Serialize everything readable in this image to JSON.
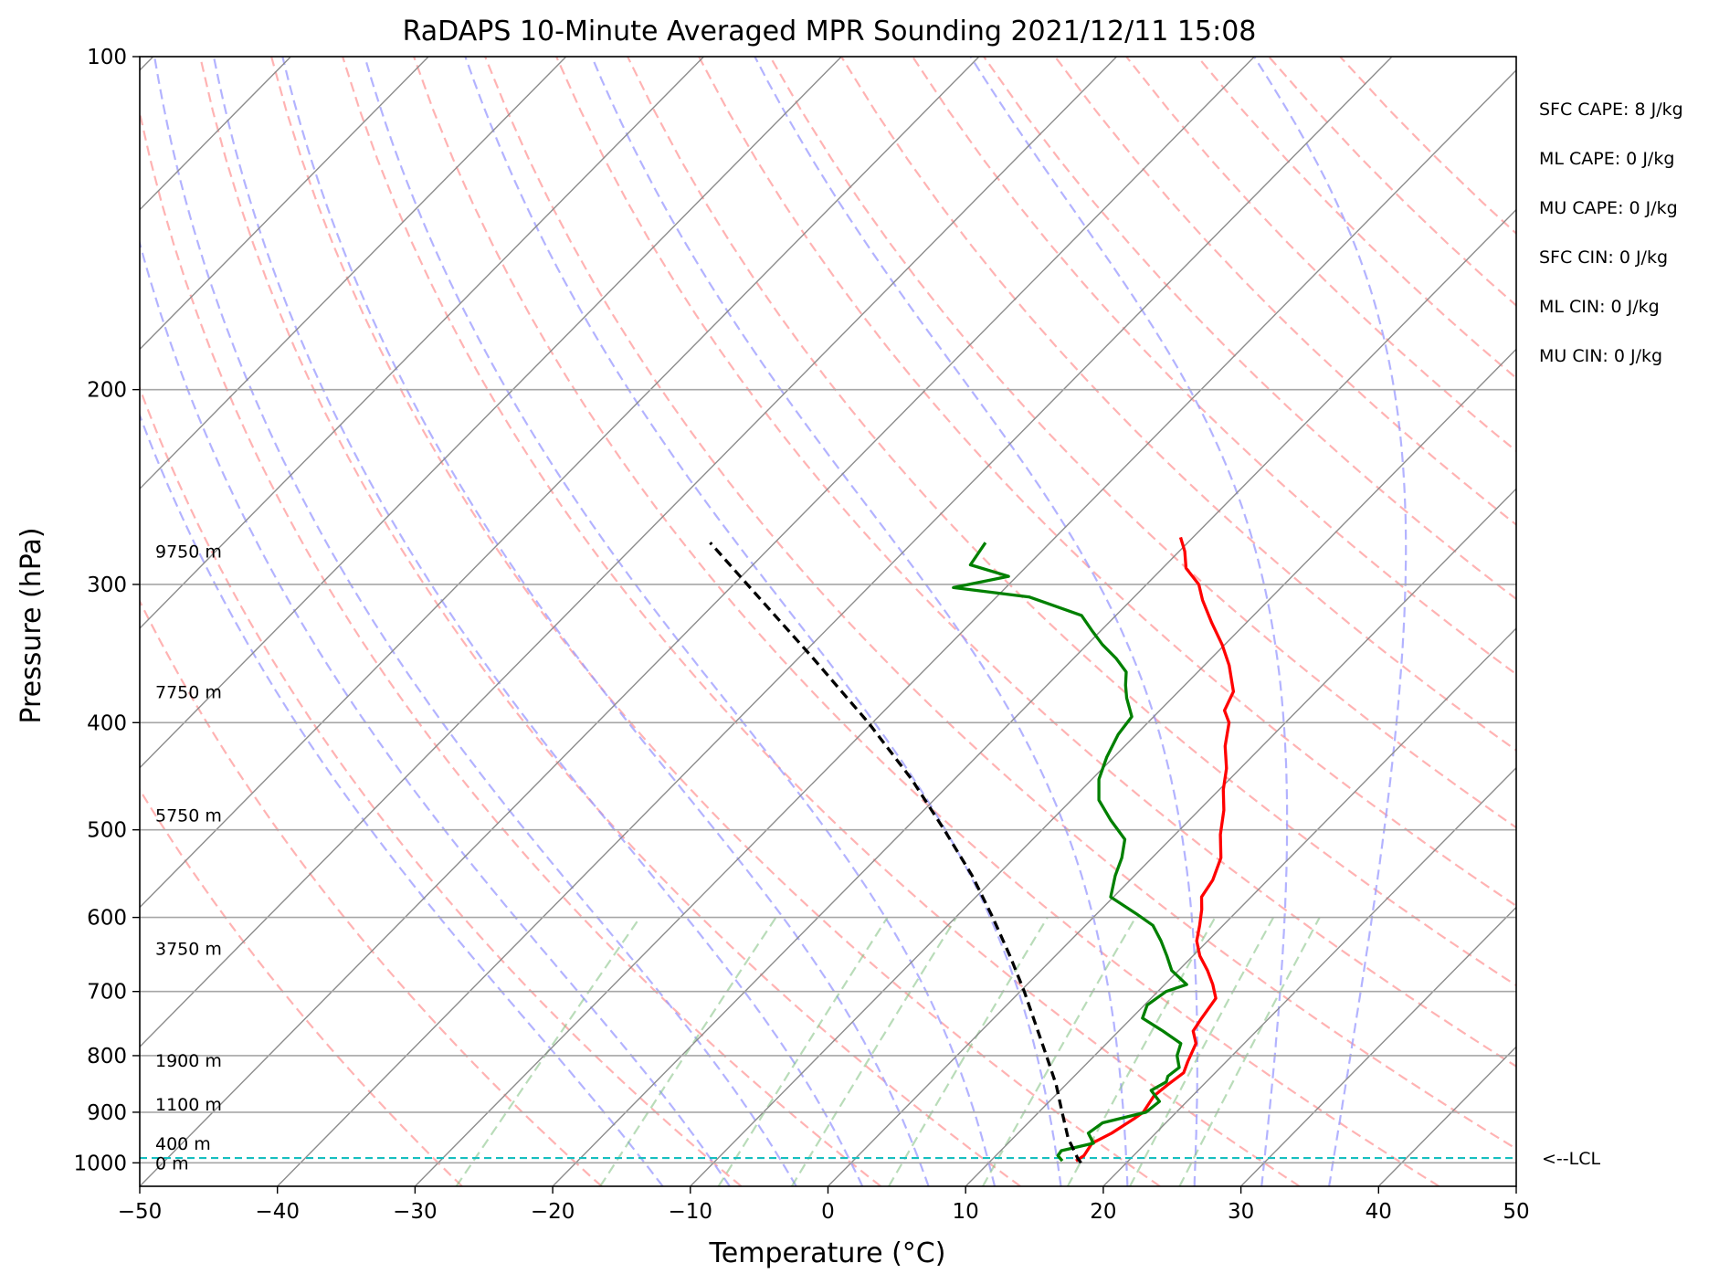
{
  "chart_data": {
    "type": "skew-t",
    "title": "RaDAPS 10-Minute Averaged MPR Sounding 2021/12/11 15:08",
    "xlabel": "Temperature (°C)",
    "ylabel": "Pressure (hPa)",
    "xlim": [
      -50,
      50
    ],
    "ylim": [
      1050,
      100
    ],
    "y_scale": "log",
    "grid": true,
    "x_ticks": [
      -50,
      -40,
      -30,
      -20,
      -10,
      0,
      10,
      20,
      30,
      40,
      50
    ],
    "x_tick_labels": [
      "−50",
      "−40",
      "−30",
      "−20",
      "−10",
      "0",
      "10",
      "20",
      "30",
      "40",
      "50"
    ],
    "y_ticks": [
      100,
      200,
      300,
      400,
      500,
      600,
      700,
      800,
      900,
      1000
    ],
    "y_tick_labels": [
      "100",
      "200",
      "300",
      "400",
      "500",
      "600",
      "700",
      "800",
      "900",
      "1000"
    ],
    "height_labels": [
      {
        "text": "0 m",
        "p": 1000
      },
      {
        "text": "400 m",
        "p": 960
      },
      {
        "text": "1100 m",
        "p": 885
      },
      {
        "text": "1900 m",
        "p": 808
      },
      {
        "text": "3750 m",
        "p": 640
      },
      {
        "text": "5750 m",
        "p": 485
      },
      {
        "text": "7750 m",
        "p": 375
      },
      {
        "text": "9750 m",
        "p": 280
      }
    ],
    "lcl": {
      "label": "<--LCL",
      "p": 990
    },
    "series": [
      {
        "color": "#ff0000",
        "points": [
          [
            996,
            16.2
          ],
          [
            985,
            16.4
          ],
          [
            960,
            16.1
          ],
          [
            940,
            16.8
          ],
          [
            912,
            17.4
          ],
          [
            900,
            17.6
          ],
          [
            870,
            17.2
          ],
          [
            850,
            17.4
          ],
          [
            829,
            17.7
          ],
          [
            810,
            17.2
          ],
          [
            780,
            16.5
          ],
          [
            760,
            15.4
          ],
          [
            740,
            15.1
          ],
          [
            710,
            14.7
          ],
          [
            690,
            13.5
          ],
          [
            670,
            12.1
          ],
          [
            650,
            10.5
          ],
          [
            630,
            9.2
          ],
          [
            610,
            8.3
          ],
          [
            590,
            7.3
          ],
          [
            575,
            6.4
          ],
          [
            555,
            6.0
          ],
          [
            530,
            5.0
          ],
          [
            505,
            3.3
          ],
          [
            480,
            1.8
          ],
          [
            460,
            0.3
          ],
          [
            440,
            -1.0
          ],
          [
            420,
            -2.7
          ],
          [
            400,
            -4.1
          ],
          [
            390,
            -5.3
          ],
          [
            375,
            -6.0
          ],
          [
            355,
            -8.2
          ],
          [
            340,
            -10.2
          ],
          [
            325,
            -12.5
          ],
          [
            310,
            -14.8
          ],
          [
            300,
            -16.2
          ],
          [
            290,
            -18.3
          ],
          [
            280,
            -19.6
          ],
          [
            272,
            -20.9
          ]
        ]
      },
      {
        "color": "#008000",
        "points": [
          [
            996,
            15.2
          ],
          [
            985,
            14.5
          ],
          [
            975,
            14.4
          ],
          [
            960,
            16.2
          ],
          [
            940,
            15.1
          ],
          [
            920,
            15.4
          ],
          [
            900,
            17.8
          ],
          [
            880,
            18.0
          ],
          [
            860,
            16.6
          ],
          [
            845,
            17.1
          ],
          [
            835,
            16.8
          ],
          [
            820,
            17.0
          ],
          [
            800,
            16.0
          ],
          [
            780,
            15.4
          ],
          [
            760,
            13.2
          ],
          [
            740,
            10.8
          ],
          [
            720,
            10.2
          ],
          [
            700,
            10.6
          ],
          [
            690,
            11.6
          ],
          [
            670,
            9.5
          ],
          [
            650,
            8.1
          ],
          [
            630,
            6.6
          ],
          [
            610,
            4.9
          ],
          [
            595,
            2.8
          ],
          [
            575,
            -0.2
          ],
          [
            550,
            -1.4
          ],
          [
            530,
            -2.2
          ],
          [
            510,
            -3.3
          ],
          [
            490,
            -5.7
          ],
          [
            470,
            -8.0
          ],
          [
            450,
            -9.5
          ],
          [
            430,
            -10.5
          ],
          [
            410,
            -11.3
          ],
          [
            395,
            -11.6
          ],
          [
            380,
            -13.3
          ],
          [
            370,
            -14.3
          ],
          [
            360,
            -15.2
          ],
          [
            350,
            -16.9
          ],
          [
            340,
            -18.9
          ],
          [
            330,
            -20.7
          ],
          [
            320,
            -22.5
          ],
          [
            308,
            -27.6
          ],
          [
            302,
            -33.8
          ],
          [
            295,
            -30.6
          ],
          [
            288,
            -34.2
          ],
          [
            275,
            -34.7
          ]
        ]
      },
      {
        "color": "#000000",
        "style": "dashed",
        "points": [
          [
            1000,
            16.7
          ],
          [
            990,
            16.1
          ],
          [
            950,
            14.0
          ],
          [
            900,
            11.7
          ],
          [
            850,
            9.3
          ],
          [
            800,
            6.5
          ],
          [
            750,
            3.5
          ],
          [
            700,
            0.3
          ],
          [
            650,
            -3.3
          ],
          [
            600,
            -7.3
          ],
          [
            550,
            -11.8
          ],
          [
            500,
            -17.1
          ],
          [
            450,
            -23.1
          ],
          [
            400,
            -30.3
          ],
          [
            350,
            -38.9
          ],
          [
            300,
            -49.0
          ],
          [
            275,
            -54.7
          ]
        ]
      }
    ],
    "background_lines": {
      "isotherms_c": [
        -140,
        -130,
        -120,
        -110,
        -100,
        -90,
        -80,
        -70,
        -60,
        -50,
        -40,
        -30,
        -20,
        -10,
        0,
        10,
        20,
        30,
        40,
        50
      ],
      "dry_adiabats_c": [
        -30,
        -20,
        -10,
        0,
        10,
        20,
        30,
        40,
        50,
        60,
        70,
        80,
        90,
        100,
        110,
        120,
        130,
        140,
        150,
        160,
        170
      ],
      "moist_adiabats_c": [
        -15,
        -10,
        -5,
        0,
        5,
        10,
        15,
        20,
        25,
        30,
        35
      ],
      "mixing_ratios_gkg": [
        0.4,
        1,
        2,
        3,
        5,
        8,
        12,
        16,
        20
      ]
    },
    "colors": {
      "dry_adiabat": "#ff9a9a",
      "moist_adiabat": "#9a9aff",
      "mixing_ratio": "#7fbf7f",
      "isotherm_skewed": "#8c8c8c",
      "isobar_grid": "#a6a6a6",
      "lcl_line": "#17bebf"
    }
  },
  "stats": {
    "sfc_cape": "SFC CAPE: 8 J/kg",
    "ml_cape": "ML CAPE: 0 J/kg",
    "mu_cape": "MU CAPE: 0 J/kg",
    "sfc_cin": "SFC CIN: 0 J/kg",
    "ml_cin": "ML CIN: 0 J/kg",
    "mu_cin": "MU CIN: 0 J/kg"
  }
}
